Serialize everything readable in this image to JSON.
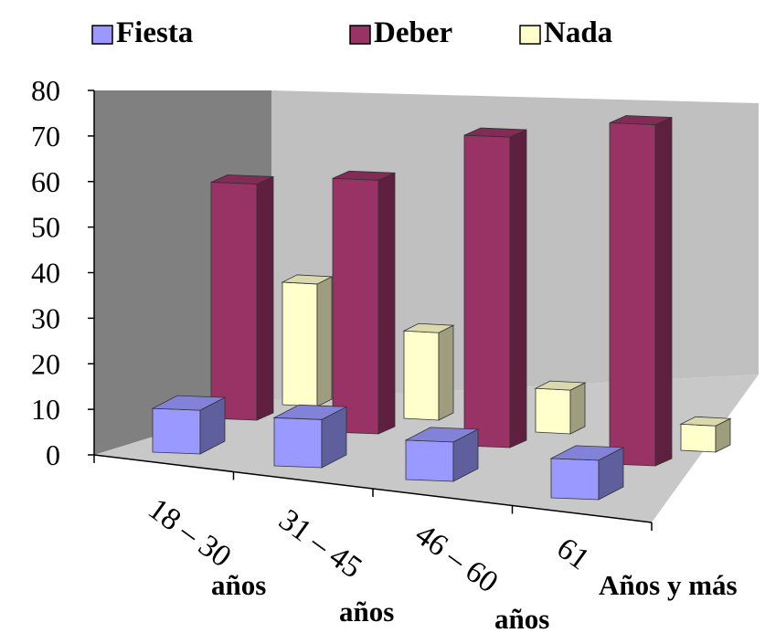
{
  "chart_data": {
    "type": "bar",
    "categories": [
      "18 – 30",
      "31 – 45",
      "46 – 60",
      "61"
    ],
    "category_sublabels": [
      "años",
      "años",
      "años",
      "Años y más"
    ],
    "series": [
      {
        "name": "Fiesta",
        "values": [
          10,
          11,
          9,
          9
        ],
        "color": "#9999FF"
      },
      {
        "name": "Deber",
        "values": [
          54,
          58,
          71,
          78
        ],
        "color": "#993366"
      },
      {
        "name": "Nada",
        "values": [
          28,
          20,
          10,
          6
        ],
        "color": "#FFFFCC"
      }
    ],
    "ylim": [
      0,
      80
    ],
    "yticks": [
      "0",
      "10",
      "20",
      "30",
      "40",
      "50",
      "60",
      "70",
      "80"
    ],
    "legend_position": "top",
    "style": "3d-clustered-column",
    "grid": false,
    "colors": {
      "back_wall": "#C0C0C0",
      "side_wall": "#808080",
      "floor": "#C0C0C0"
    }
  }
}
